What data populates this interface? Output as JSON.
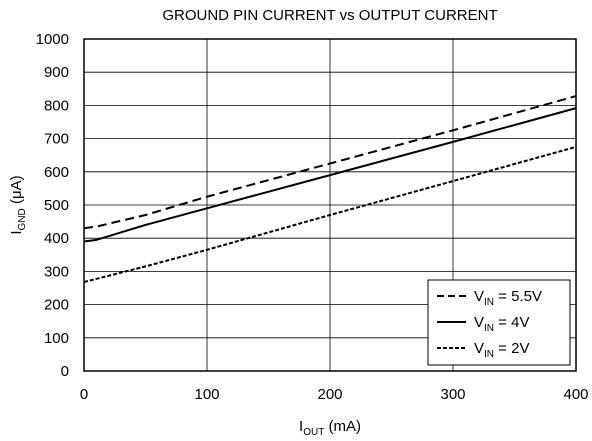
{
  "chart_data": {
    "type": "line",
    "title": "GROUND PIN CURRENT vs OUTPUT CURRENT",
    "xlabel": {
      "main": "I",
      "sub": "OUT",
      "unit": " (mA)"
    },
    "ylabel": {
      "main": "I",
      "sub": "GND",
      "unit": " (μA)"
    },
    "xlim": [
      0,
      400
    ],
    "ylim": [
      0,
      1000
    ],
    "x_ticks": [
      0,
      100,
      200,
      300,
      400
    ],
    "y_ticks": [
      0,
      100,
      200,
      300,
      400,
      500,
      600,
      700,
      800,
      900,
      1000
    ],
    "grid": true,
    "legend_position": "bottom-right",
    "series": [
      {
        "name": {
          "main": "V",
          "sub": "IN",
          "rest": " = 5.5V"
        },
        "dash": "dashed",
        "x": [
          0,
          10,
          50,
          100,
          200,
          300,
          400
        ],
        "y": [
          430,
          435,
          470,
          525,
          625,
          725,
          828
        ]
      },
      {
        "name": {
          "main": "V",
          "sub": "IN",
          "rest": " = 4V"
        },
        "dash": "solid",
        "x": [
          0,
          10,
          50,
          100,
          200,
          300,
          400
        ],
        "y": [
          390,
          395,
          440,
          490,
          590,
          690,
          792
        ]
      },
      {
        "name": {
          "main": "V",
          "sub": "IN",
          "rest": " = 2V"
        },
        "dash": "dotted",
        "x": [
          0,
          50,
          100,
          200,
          300,
          400
        ],
        "y": [
          268,
          315,
          365,
          470,
          572,
          675
        ]
      }
    ]
  }
}
